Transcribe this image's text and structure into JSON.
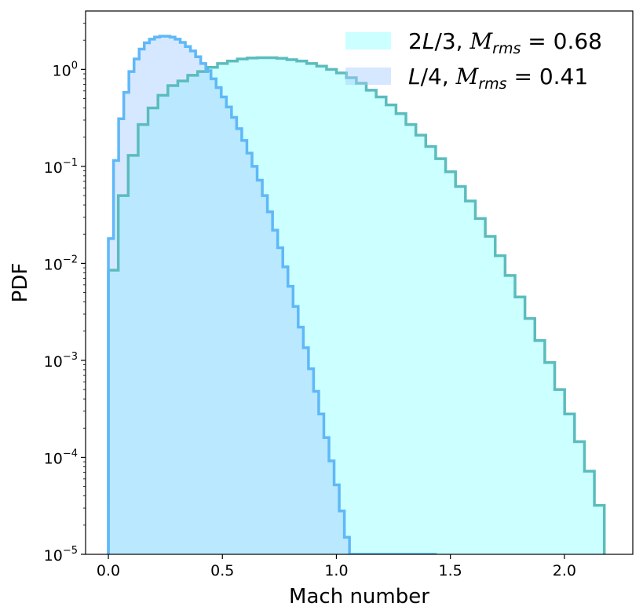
{
  "chart_data": {
    "type": "histogram-step",
    "xlabel": "Mach number",
    "ylabel": "PDF",
    "xlim": [
      -0.1,
      2.3
    ],
    "ylim": [
      1e-05,
      4
    ],
    "yscale": "log",
    "grid": false,
    "legend_position": "top-right",
    "x_ticks": [
      {
        "value": 0.0,
        "label": "0.0"
      },
      {
        "value": 0.5,
        "label": "0.5"
      },
      {
        "value": 1.0,
        "label": "1.0"
      },
      {
        "value": 1.5,
        "label": "1.5"
      },
      {
        "value": 2.0,
        "label": "2.0"
      }
    ],
    "y_ticks": [
      {
        "value": 1e-05,
        "base": "10",
        "exp": "−5"
      },
      {
        "value": 0.0001,
        "base": "10",
        "exp": "−4"
      },
      {
        "value": 0.001,
        "base": "10",
        "exp": "−3"
      },
      {
        "value": 0.01,
        "base": "10",
        "exp": "−2"
      },
      {
        "value": 0.1,
        "base": "10",
        "exp": "−1"
      },
      {
        "value": 1,
        "base": "10",
        "exp": "0"
      }
    ],
    "series": [
      {
        "name": "2L/3, Mrms = 0.68",
        "legend_parts": [
          "2",
          "L",
          "/3, ",
          "M",
          "rms",
          " = 0.68"
        ],
        "fill_color": "#ccffff",
        "line_color": "#5bbcbd",
        "x_start": 0.0,
        "bin_width": 0.0435,
        "values": [
          0.0085,
          0.05,
          0.13,
          0.27,
          0.4,
          0.54,
          0.68,
          0.76,
          0.87,
          0.95,
          1.05,
          1.15,
          1.22,
          1.28,
          1.31,
          1.32,
          1.32,
          1.3,
          1.26,
          1.22,
          1.15,
          1.08,
          1.0,
          0.92,
          0.82,
          0.72,
          0.61,
          0.52,
          0.43,
          0.35,
          0.27,
          0.21,
          0.16,
          0.12,
          0.088,
          0.062,
          0.044,
          0.029,
          0.019,
          0.012,
          0.0075,
          0.0045,
          0.0027,
          0.0016,
          0.00095,
          0.0005,
          0.00028,
          0.000145,
          7.2e-05,
          3.2e-05
        ]
      },
      {
        "name": "L/4, Mrms = 0.41",
        "legend_parts": [
          "",
          "L",
          "/4, ",
          "M",
          "rms",
          " = 0.41"
        ],
        "fill_color": "#a5ccff",
        "line_color": "#5fb8f8",
        "x_start": 0.0,
        "bin_width": 0.0225,
        "values": [
          0.018,
          0.115,
          0.31,
          0.58,
          0.95,
          1.28,
          1.62,
          1.88,
          2.05,
          2.15,
          2.2,
          2.2,
          2.15,
          2.05,
          1.9,
          1.72,
          1.55,
          1.35,
          1.15,
          0.97,
          0.8,
          0.65,
          0.52,
          0.41,
          0.32,
          0.245,
          0.185,
          0.137,
          0.1,
          0.072,
          0.05,
          0.034,
          0.022,
          0.0145,
          0.0092,
          0.0058,
          0.0036,
          0.0022,
          0.00135,
          0.00082,
          0.00048,
          0.00028,
          0.00016,
          9.2e-05,
          5.2e-05,
          2.8e-05,
          1.5e-05,
          1e-05,
          1e-05,
          1e-05,
          1e-05,
          1e-05,
          1e-05,
          1e-05,
          1e-05,
          1e-05,
          1e-05,
          1e-05,
          1e-05,
          1e-05,
          1e-05,
          1e-05,
          1e-05,
          1e-05
        ]
      }
    ]
  }
}
